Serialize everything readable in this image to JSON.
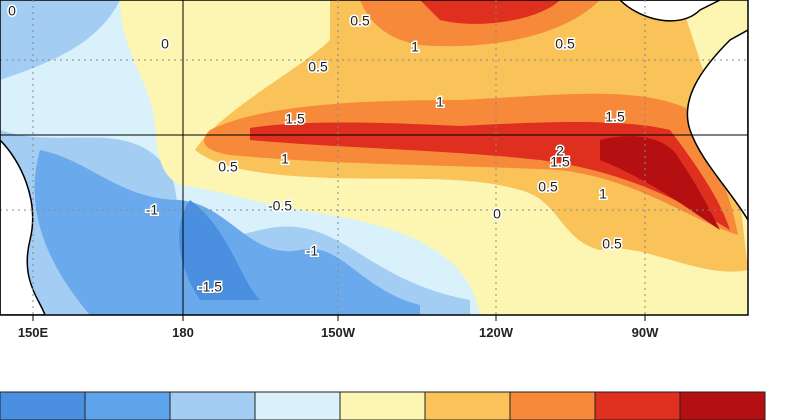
{
  "map": {
    "lon_labels": [
      "150E",
      "180",
      "150W",
      "120W",
      "90W"
    ],
    "contour_labels": [
      "0",
      "0.5",
      "1",
      "0.5",
      "0.5",
      "0",
      "1",
      "1.5",
      "1.5",
      "1",
      "0.5",
      "2",
      "1.5",
      "0.5",
      "1",
      "0",
      "0.5",
      "-1",
      "-0.5",
      "-1",
      "-1.5"
    ],
    "colorbar": [
      "#4a8fe0",
      "#5ea4ec",
      "#a3cdf3",
      "#d9f1fb",
      "#fdf5b2",
      "#f9c35a",
      "#f7893a",
      "#df2f1f",
      "#b60f11"
    ]
  }
}
